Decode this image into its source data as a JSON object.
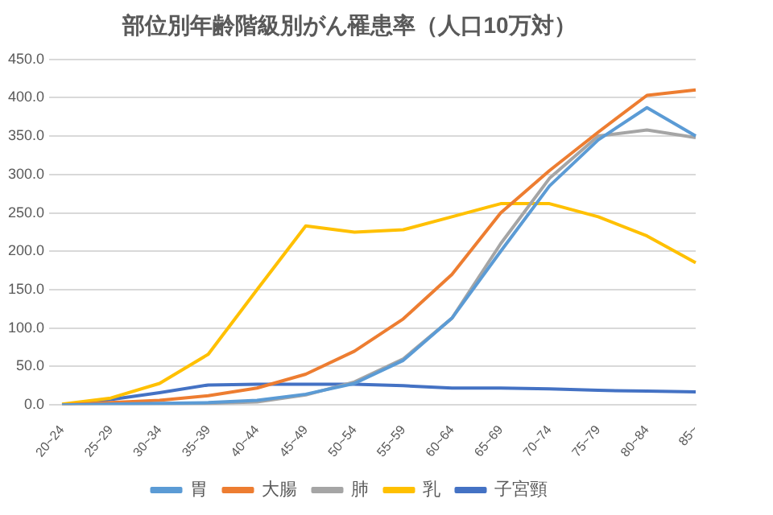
{
  "chart_data": {
    "type": "line",
    "title": "部位別年齢階級別がん罹患率（人口10万対）",
    "categories": [
      "20~24",
      "25~29",
      "30~34",
      "35~39",
      "40~44",
      "45~49",
      "50~54",
      "55~59",
      "60~64",
      "65~69",
      "70~74",
      "75~79",
      "80~84",
      "85~"
    ],
    "series": [
      {
        "name": "胃",
        "color": "#5b9bd5",
        "values": [
          0,
          1,
          2,
          3,
          6,
          14,
          28,
          58,
          113,
          200,
          285,
          345,
          387,
          350
        ]
      },
      {
        "name": "大腸",
        "color": "#ed7d31",
        "values": [
          0,
          3,
          6,
          12,
          22,
          40,
          70,
          112,
          170,
          250,
          305,
          355,
          403,
          410
        ]
      },
      {
        "name": "肺",
        "color": "#a5a5a5",
        "values": [
          0,
          1,
          1,
          2,
          4,
          13,
          30,
          60,
          113,
          210,
          295,
          350,
          358,
          348
        ]
      },
      {
        "name": "乳",
        "color": "#ffc000",
        "values": [
          1,
          9,
          28,
          66,
          150,
          233,
          225,
          228,
          245,
          262,
          262,
          245,
          220,
          185
        ]
      },
      {
        "name": "子宮頸",
        "color": "#4472c4",
        "values": [
          0,
          7,
          16,
          26,
          27,
          27,
          27,
          25,
          22,
          22,
          21,
          19,
          18,
          17
        ]
      }
    ],
    "ylim": [
      0,
      450
    ],
    "yticks": [
      {
        "value": 0,
        "label": "0.0"
      },
      {
        "value": 50,
        "label": "50.0"
      },
      {
        "value": 100,
        "label": "100.0"
      },
      {
        "value": 150,
        "label": "150.0"
      },
      {
        "value": 200,
        "label": "200.0"
      },
      {
        "value": 250,
        "label": "250.0"
      },
      {
        "value": 300,
        "label": "300.0"
      },
      {
        "value": 350,
        "label": "350.0"
      },
      {
        "value": 400,
        "label": "400.0"
      },
      {
        "value": 450,
        "label": "450.0"
      }
    ],
    "grid": "y",
    "legend": "bottom",
    "marker": "none",
    "line_style": "solid"
  }
}
